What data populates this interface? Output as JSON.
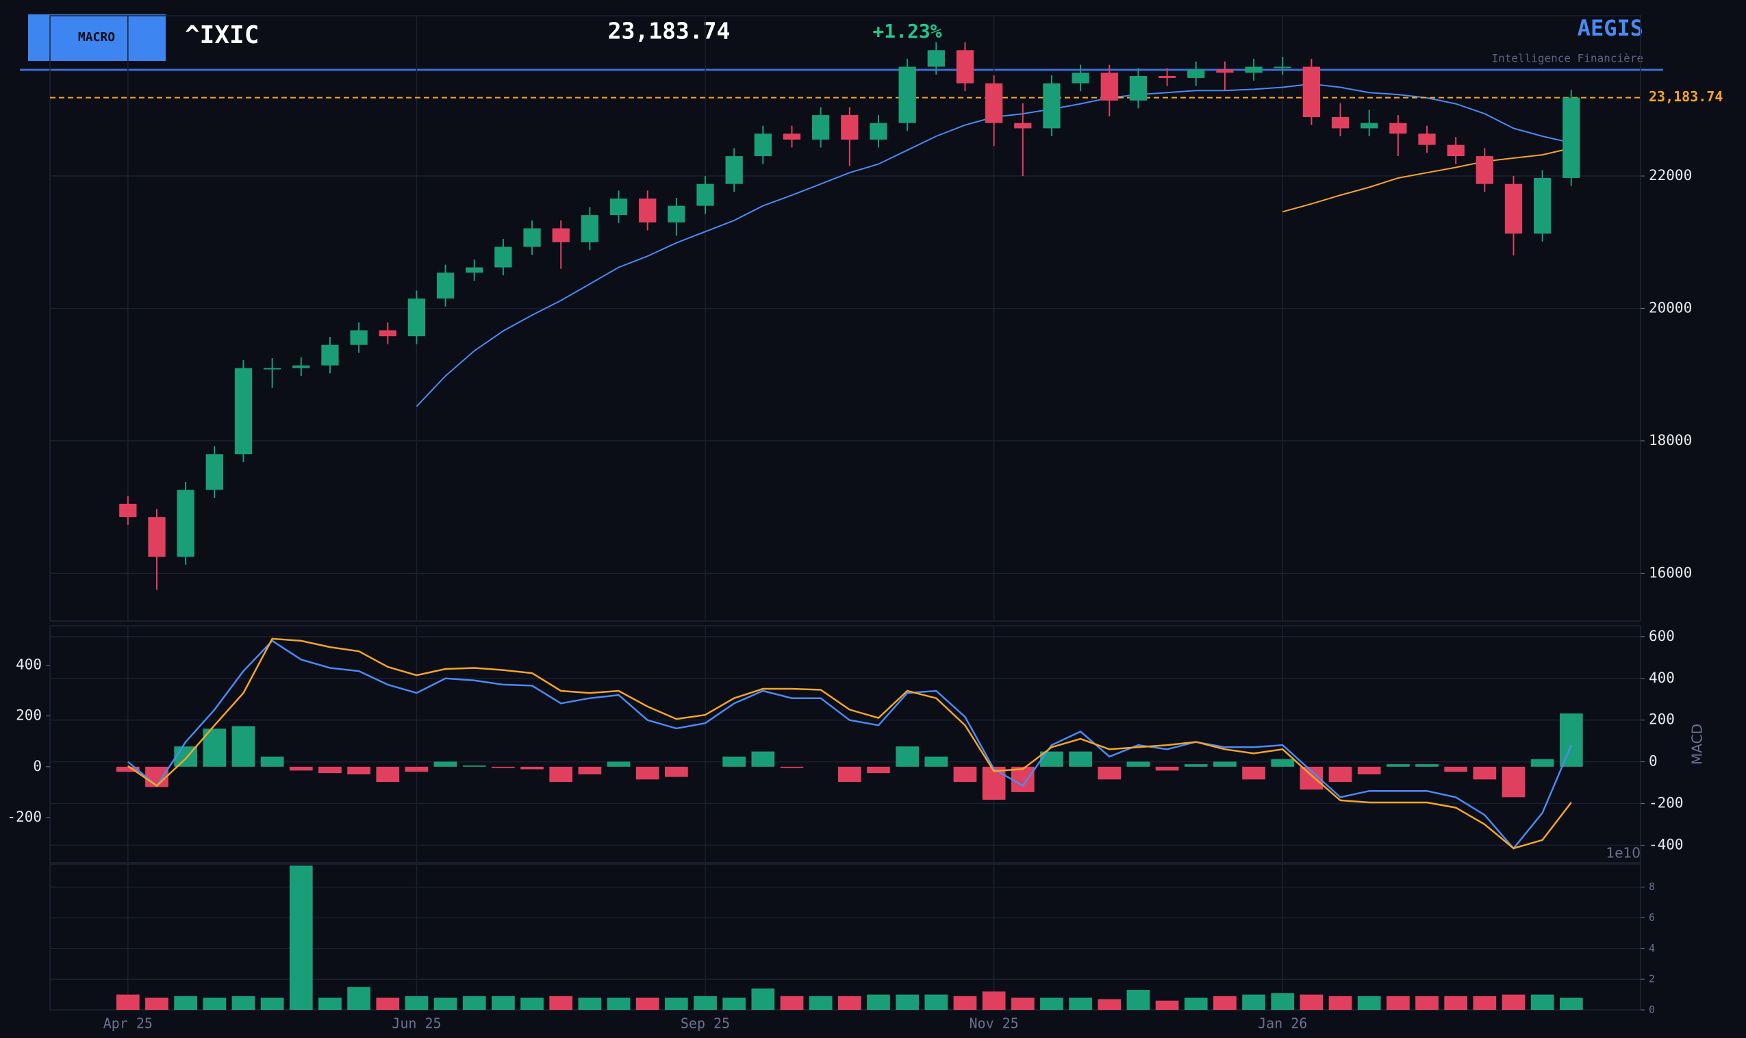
{
  "header": {
    "button": "MACRO",
    "symbol": "^IXIC",
    "price": "23,183.74",
    "change": "+1.23%",
    "brand": "AEGIS",
    "tagline": "Intelligence Financière"
  },
  "chart_data": [
    {
      "type": "candlestick",
      "x": [
        0,
        5,
        10,
        15,
        20,
        25,
        30,
        35,
        40,
        45,
        50,
        55,
        60,
        65,
        70,
        75,
        80,
        85,
        90,
        95,
        100,
        105,
        110,
        115,
        120,
        125,
        130,
        135,
        140,
        145,
        150,
        155,
        160,
        165,
        170,
        175,
        180,
        185,
        190,
        195,
        200,
        205,
        210,
        215,
        220,
        225,
        230,
        235,
        240,
        245,
        250
      ],
      "open": [
        17050,
        16850,
        16250,
        17260,
        17800,
        19100,
        19100,
        19140,
        19450,
        19670,
        19580,
        20150,
        20540,
        20620,
        20930,
        21210,
        21000,
        21410,
        21660,
        21300,
        21550,
        21880,
        22300,
        22640,
        22550,
        22920,
        22550,
        22800,
        23650,
        23900,
        23400,
        22800,
        22720,
        23400,
        23560,
        23140,
        23510,
        23480,
        23610,
        23560,
        23650,
        23650,
        22890,
        22720,
        22800,
        22640,
        22470,
        22300,
        21880,
        21130,
        21970
      ],
      "high": [
        17170,
        16970,
        17380,
        17920,
        19220,
        19250,
        19260,
        19570,
        19790,
        19790,
        20270,
        20660,
        20740,
        21050,
        21330,
        21330,
        21530,
        21780,
        21780,
        21670,
        22000,
        22420,
        22760,
        22760,
        23040,
        23040,
        22920,
        23770,
        24020,
        24020,
        23520,
        23100,
        23520,
        23680,
        23680,
        23630,
        23630,
        23730,
        23730,
        23770,
        23800,
        23770,
        23100,
        23000,
        22920,
        22760,
        22590,
        22420,
        22000,
        22090,
        23300
      ],
      "low": [
        16730,
        15750,
        16130,
        17140,
        17680,
        18800,
        18980,
        19020,
        19330,
        19460,
        19460,
        20030,
        20420,
        20500,
        20810,
        20600,
        20880,
        21290,
        21180,
        21100,
        21430,
        21760,
        22180,
        22430,
        22430,
        22150,
        22430,
        22680,
        23530,
        23280,
        22450,
        22000,
        22600,
        23280,
        22900,
        23020,
        23360,
        23360,
        23300,
        23440,
        23530,
        22770,
        22600,
        22600,
        22300,
        22350,
        22180,
        21760,
        20800,
        21010,
        21850
      ],
      "close": [
        16850,
        16250,
        17260,
        17800,
        19100,
        19100,
        19140,
        19450,
        19670,
        19580,
        20150,
        20540,
        20620,
        20930,
        21210,
        21000,
        21410,
        21660,
        21300,
        21550,
        21880,
        22300,
        22640,
        22550,
        22920,
        22550,
        22800,
        23650,
        23900,
        23400,
        22800,
        22720,
        23400,
        23560,
        23140,
        23510,
        23480,
        23610,
        23560,
        23650,
        23650,
        22890,
        22720,
        22800,
        22640,
        22470,
        22300,
        21880,
        21130,
        21970,
        23183.74
      ],
      "up_color": "#1a9e77",
      "down_color": "#e0405e",
      "overlays": [
        {
          "color": "#4a8af4",
          "values": [
            null,
            null,
            null,
            null,
            null,
            null,
            null,
            null,
            null,
            null,
            18520,
            18980,
            19360,
            19660,
            19900,
            20120,
            20370,
            20620,
            20790,
            20990,
            21160,
            21330,
            21550,
            21710,
            21880,
            22050,
            22180,
            22390,
            22600,
            22770,
            22890,
            22940,
            23010,
            23090,
            23180,
            23230,
            23260,
            23290,
            23290,
            23310,
            23340,
            23390,
            23340,
            23260,
            23230,
            23180,
            23090,
            22940,
            22720,
            22600,
            22500
          ]
        },
        {
          "color": "#f5a623",
          "values": [
            null,
            null,
            null,
            null,
            null,
            null,
            null,
            null,
            null,
            null,
            null,
            null,
            null,
            null,
            null,
            null,
            null,
            null,
            null,
            null,
            null,
            null,
            null,
            null,
            null,
            null,
            null,
            null,
            null,
            null,
            null,
            null,
            null,
            null,
            null,
            null,
            null,
            null,
            null,
            null,
            21460,
            21580,
            21710,
            21830,
            21970,
            22050,
            22130,
            22220,
            22270,
            22320,
            22420
          ]
        }
      ],
      "levels": [
        {
          "value": 23183.74,
          "label": "23,183.74",
          "color": "#f5a623"
        }
      ],
      "xlim": [
        -13.5,
        262
      ],
      "xticks": [
        {
          "value": 0,
          "label": "Apr 25"
        },
        {
          "value": 50,
          "label": "Jun 25"
        },
        {
          "value": 100,
          "label": "Sep 25"
        },
        {
          "value": 150,
          "label": "Nov 25"
        },
        {
          "value": 200,
          "label": "Jan 26"
        }
      ],
      "ylim": [
        15280,
        24420
      ],
      "yticks": [
        16000,
        18000,
        20000,
        22000
      ],
      "grid": true
    },
    {
      "type": "combo",
      "ylabel": "MACD",
      "x": [
        0,
        5,
        10,
        15,
        20,
        25,
        30,
        35,
        40,
        45,
        50,
        55,
        60,
        65,
        70,
        75,
        80,
        85,
        90,
        95,
        100,
        105,
        110,
        115,
        120,
        125,
        130,
        135,
        140,
        145,
        150,
        155,
        160,
        165,
        170,
        175,
        180,
        185,
        190,
        195,
        200,
        205,
        210,
        215,
        220,
        225,
        230,
        235,
        240,
        245,
        250
      ],
      "series": [
        {
          "kind": "bar",
          "axis": "y2",
          "values": [
            -20,
            -80,
            80,
            150,
            160,
            40,
            -15,
            -25,
            -30,
            -60,
            -20,
            20,
            5,
            -5,
            -10,
            -60,
            -30,
            20,
            -50,
            -40,
            0,
            40,
            60,
            -5,
            0,
            -60,
            -25,
            80,
            40,
            -60,
            -130,
            -100,
            60,
            60,
            -50,
            20,
            -15,
            10,
            20,
            -50,
            30,
            -90,
            -60,
            -30,
            10,
            10,
            -20,
            -50,
            -120,
            30,
            210
          ]
        },
        {
          "kind": "line",
          "color": "#4a8af4",
          "values": [
            0,
            -115,
            95,
            250,
            435,
            580,
            490,
            450,
            435,
            370,
            330,
            400,
            390,
            370,
            365,
            280,
            305,
            320,
            200,
            160,
            185,
            280,
            340,
            305,
            305,
            200,
            175,
            330,
            340,
            215,
            -35,
            -115,
            80,
            145,
            25,
            80,
            60,
            95,
            70,
            70,
            80,
            -45,
            -170,
            -140,
            -140,
            -140,
            -170,
            -255,
            -415,
            -245,
            80
          ]
        },
        {
          "kind": "line",
          "color": "#f5a623",
          "values": [
            -20,
            -115,
            15,
            175,
            330,
            590,
            580,
            550,
            530,
            455,
            415,
            445,
            450,
            440,
            425,
            340,
            330,
            340,
            265,
            205,
            225,
            305,
            350,
            350,
            345,
            250,
            210,
            340,
            305,
            175,
            -45,
            -35,
            70,
            110,
            60,
            70,
            80,
            95,
            60,
            40,
            60,
            -65,
            -185,
            -195,
            -195,
            -195,
            -220,
            -300,
            -415,
            -375,
            -195
          ]
        }
      ],
      "xlim": [
        -13.5,
        262
      ],
      "xticks": [
        {
          "value": 0,
          "label": "Apr 25"
        },
        {
          "value": 50,
          "label": "Jun 25"
        },
        {
          "value": 100,
          "label": "Sep 25"
        },
        {
          "value": 150,
          "label": "Nov 25"
        },
        {
          "value": 200,
          "label": "Jan 26"
        }
      ],
      "ylim": [
        -484,
        652
      ],
      "yticks": [
        -400,
        -200,
        0,
        200,
        400,
        600
      ],
      "y2lim": [
        -378,
        555
      ],
      "y2ticks": [
        -200,
        0,
        200,
        400
      ],
      "grid": true
    },
    {
      "type": "bar",
      "offset_label": "1e10",
      "x": [
        0,
        5,
        10,
        15,
        20,
        25,
        30,
        35,
        40,
        45,
        50,
        55,
        60,
        65,
        70,
        75,
        80,
        85,
        90,
        95,
        100,
        105,
        110,
        115,
        120,
        125,
        130,
        135,
        140,
        145,
        150,
        155,
        160,
        165,
        170,
        175,
        180,
        185,
        190,
        195,
        200,
        205,
        210,
        215,
        220,
        225,
        230,
        235,
        240,
        245,
        250
      ],
      "values": [
        1.0,
        0.8,
        0.9,
        0.8,
        0.9,
        0.8,
        9.4,
        0.8,
        1.5,
        0.8,
        0.9,
        0.8,
        0.9,
        0.9,
        0.8,
        0.9,
        0.8,
        0.8,
        0.8,
        0.8,
        0.9,
        0.8,
        1.4,
        0.9,
        0.9,
        0.9,
        1.0,
        1.0,
        1.0,
        0.9,
        1.2,
        0.8,
        0.8,
        0.8,
        0.7,
        1.3,
        0.6,
        0.8,
        0.9,
        1.0,
        1.1,
        1.0,
        0.9,
        0.9,
        0.9,
        0.9,
        0.9,
        0.9,
        1.0,
        1.0,
        0.8
      ],
      "xlim": [
        -13.5,
        262
      ],
      "xticks": [
        {
          "value": 0,
          "label": "Apr 25"
        },
        {
          "value": 50,
          "label": "Jun 25"
        },
        {
          "value": 100,
          "label": "Sep 25"
        },
        {
          "value": 150,
          "label": "Nov 25"
        },
        {
          "value": 200,
          "label": "Jan 26"
        }
      ],
      "ylim": [
        0,
        9.5
      ],
      "yticks": [
        0,
        2,
        4,
        6,
        8
      ],
      "grid": true
    }
  ]
}
